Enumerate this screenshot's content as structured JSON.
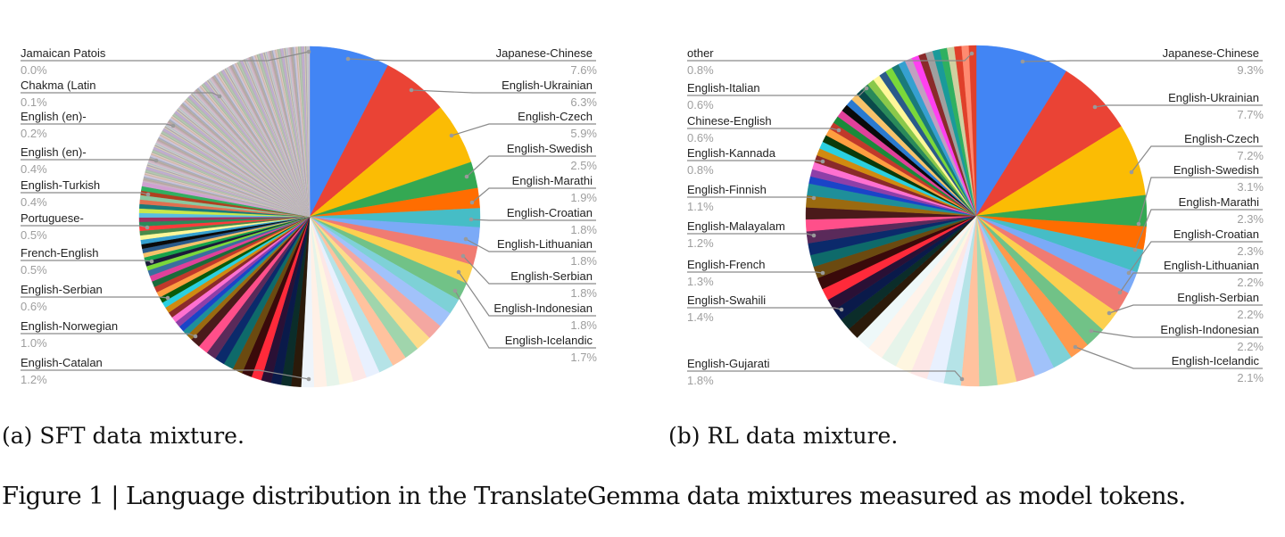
{
  "figure": {
    "caption": "Figure 1 | Language distribution in the TranslateGemma data mixtures measured as model tokens."
  },
  "subfigures": {
    "a": {
      "caption": "(a) SFT data mixture."
    },
    "b": {
      "caption": "(b) RL data mixture."
    }
  },
  "chart_data": [
    {
      "type": "pie",
      "title": "(a) SFT data mixture.",
      "start_angle": "12 o'clock, clockwise",
      "labeled_slices": [
        {
          "label": "Japanese-Chinese",
          "value": 7.6,
          "color": "#4285f4"
        },
        {
          "label": "English-Ukrainian",
          "value": 6.3,
          "color": "#ea4335"
        },
        {
          "label": "English-Czech",
          "value": 5.9,
          "color": "#fbbc04"
        },
        {
          "label": "English-Swedish",
          "value": 2.5,
          "color": "#34a853"
        },
        {
          "label": "English-Marathi",
          "value": 1.9,
          "color": "#ff6d01"
        },
        {
          "label": "English-Croatian",
          "value": 1.8,
          "color": "#46bdc6"
        },
        {
          "label": "English-Lithuanian",
          "value": 1.8,
          "color": "#7baaf7"
        },
        {
          "label": "English-Serbian",
          "value": 1.8,
          "color": "#f07b72"
        },
        {
          "label": "English-Indonesian",
          "value": 1.8,
          "color": "#fcd04f"
        },
        {
          "label": "English-Icelandic",
          "value": 1.7,
          "color": "#71c287"
        },
        {
          "label": "English-Catalan",
          "value": 1.2,
          "color": "#f3f7fb"
        },
        {
          "label": "English-Norwegian",
          "value": 1.0,
          "color": "#0b2a6b"
        },
        {
          "label": "English-Serbian",
          "value": 0.6,
          "color": "#1a44c8"
        },
        {
          "label": "French-English",
          "value": 0.5,
          "color": "#ff9e40"
        },
        {
          "label": "Portuguese-",
          "value": 0.5,
          "color": "#f6c26b"
        },
        {
          "label": "English-Turkish",
          "value": 0.4,
          "color": "#7ad83a"
        },
        {
          "label": "English (en)-",
          "value": 0.4,
          "color": "#c0392b"
        },
        {
          "label": "English (en)-",
          "value": 0.2,
          "color": "#3a6f9e"
        },
        {
          "label": "Chakma (Latin",
          "value": 0.1,
          "color": "#8e5fa8"
        },
        {
          "label": "Jamaican Patois",
          "value": 0.0,
          "color": "#c8b8c8"
        }
      ]
    },
    {
      "type": "pie",
      "title": "(b) RL data mixture.",
      "start_angle": "12 o'clock, clockwise",
      "labeled_slices": [
        {
          "label": "Japanese-Chinese",
          "value": 9.3,
          "color": "#4285f4"
        },
        {
          "label": "English-Ukrainian",
          "value": 7.7,
          "color": "#ea4335"
        },
        {
          "label": "English-Czech",
          "value": 7.2,
          "color": "#fbbc04"
        },
        {
          "label": "English-Swedish",
          "value": 3.1,
          "color": "#34a853"
        },
        {
          "label": "English-Marathi",
          "value": 2.3,
          "color": "#ff6d01"
        },
        {
          "label": "English-Croatian",
          "value": 2.3,
          "color": "#46bdc6"
        },
        {
          "label": "English-Lithuanian",
          "value": 2.2,
          "color": "#7baaf7"
        },
        {
          "label": "English-Serbian",
          "value": 2.2,
          "color": "#f07b72"
        },
        {
          "label": "English-Indonesian",
          "value": 2.2,
          "color": "#fcd04f"
        },
        {
          "label": "English-Icelandic",
          "value": 2.1,
          "color": "#71c287"
        },
        {
          "label": "English-Gujarati",
          "value": 1.8,
          "color": "#a8dab5"
        },
        {
          "label": "English-Swahili",
          "value": 1.4,
          "color": "#2b1a0a"
        },
        {
          "label": "English-French",
          "value": 1.3,
          "color": "#2a1035"
        },
        {
          "label": "English-Malayalam",
          "value": 1.2,
          "color": "#6b4a10"
        },
        {
          "label": "English-Finnish",
          "value": 1.1,
          "color": "#5a2a5a"
        },
        {
          "label": "English-Kannada",
          "value": 0.8,
          "color": "#1e8f9a"
        },
        {
          "label": "Chinese-English",
          "value": 0.6,
          "color": "#b0602a"
        },
        {
          "label": "English-Italian",
          "value": 0.6,
          "color": "#0a1a0a"
        },
        {
          "label": "other",
          "value": 0.8,
          "color": "#e0402a"
        }
      ]
    }
  ],
  "charts": {
    "a": {
      "left_labels": [
        {
          "name": "Jamaican Patois",
          "pct": "0.0%"
        },
        {
          "name": "Chakma (Latin",
          "pct": "0.1%"
        },
        {
          "name": "English (en)-",
          "pct": "0.2%"
        },
        {
          "name": "English (en)-",
          "pct": "0.4%"
        },
        {
          "name": "English-Turkish",
          "pct": "0.4%"
        },
        {
          "name": "Portuguese-",
          "pct": "0.5%"
        },
        {
          "name": "French-English",
          "pct": "0.5%"
        },
        {
          "name": "English-Serbian",
          "pct": "0.6%"
        },
        {
          "name": "English-Norwegian",
          "pct": "1.0%"
        },
        {
          "name": "English-Catalan",
          "pct": "1.2%"
        }
      ],
      "right_labels": [
        {
          "name": "Japanese-Chinese",
          "pct": "7.6%"
        },
        {
          "name": "English-Ukrainian",
          "pct": "6.3%"
        },
        {
          "name": "English-Czech",
          "pct": "5.9%"
        },
        {
          "name": "English-Swedish",
          "pct": "2.5%"
        },
        {
          "name": "English-Marathi",
          "pct": "1.9%"
        },
        {
          "name": "English-Croatian",
          "pct": "1.8%"
        },
        {
          "name": "English-Lithuanian",
          "pct": "1.8%"
        },
        {
          "name": "English-Serbian",
          "pct": "1.8%"
        },
        {
          "name": "English-Indonesian",
          "pct": "1.8%"
        },
        {
          "name": "English-Icelandic",
          "pct": "1.7%"
        }
      ]
    },
    "b": {
      "left_labels": [
        {
          "name": "other",
          "pct": "0.8%"
        },
        {
          "name": "English-Italian",
          "pct": "0.6%"
        },
        {
          "name": "Chinese-English",
          "pct": "0.6%"
        },
        {
          "name": "English-Kannada",
          "pct": "0.8%"
        },
        {
          "name": "English-Finnish",
          "pct": "1.1%"
        },
        {
          "name": "English-Malayalam",
          "pct": "1.2%"
        },
        {
          "name": "English-French",
          "pct": "1.3%"
        },
        {
          "name": "English-Swahili",
          "pct": "1.4%"
        },
        {
          "name": "English-Gujarati",
          "pct": "1.8%"
        }
      ],
      "right_labels": [
        {
          "name": "Japanese-Chinese",
          "pct": "9.3%"
        },
        {
          "name": "English-Ukrainian",
          "pct": "7.7%"
        },
        {
          "name": "English-Czech",
          "pct": "7.2%"
        },
        {
          "name": "English-Swedish",
          "pct": "3.1%"
        },
        {
          "name": "English-Marathi",
          "pct": "2.3%"
        },
        {
          "name": "English-Croatian",
          "pct": "2.3%"
        },
        {
          "name": "English-Lithuanian",
          "pct": "2.2%"
        },
        {
          "name": "English-Serbian",
          "pct": "2.2%"
        },
        {
          "name": "English-Indonesian",
          "pct": "2.2%"
        },
        {
          "name": "English-Icelandic",
          "pct": "2.1%"
        }
      ]
    }
  }
}
